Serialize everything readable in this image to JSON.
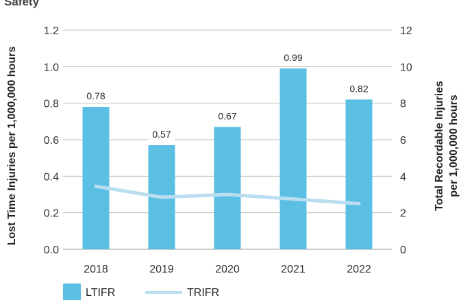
{
  "chart_data": {
    "type": "bar",
    "title": "Safety",
    "categories": [
      "2018",
      "2019",
      "2020",
      "2021",
      "2022"
    ],
    "series": [
      {
        "name": "LTIFR",
        "type": "bar",
        "axis": "left",
        "values": [
          0.78,
          0.57,
          0.67,
          0.99,
          0.82
        ],
        "labels": [
          "0.78",
          "0.57",
          "0.67",
          "0.99",
          "0.82"
        ],
        "color": "#5bbfe4"
      },
      {
        "name": "TRIFR",
        "type": "line",
        "axis": "right",
        "values": [
          3.45,
          2.85,
          3.0,
          2.75,
          2.5
        ],
        "color": "#b9def0"
      }
    ],
    "ylabel": "Lost Time Injuries per 1,000,000 hours",
    "ylim": [
      0,
      1.2
    ],
    "yticks": [
      "0.0",
      "0.2",
      "0.4",
      "0.6",
      "0.8",
      "1.0",
      "1.2"
    ],
    "y2label_lines": [
      "Total Recordable Injuries",
      "per 1,000,000 hours"
    ],
    "y2lim": [
      0,
      12
    ],
    "y2ticks": [
      "0",
      "2",
      "4",
      "6",
      "8",
      "10",
      "12"
    ],
    "grid": true,
    "legend": "bottom-left"
  }
}
